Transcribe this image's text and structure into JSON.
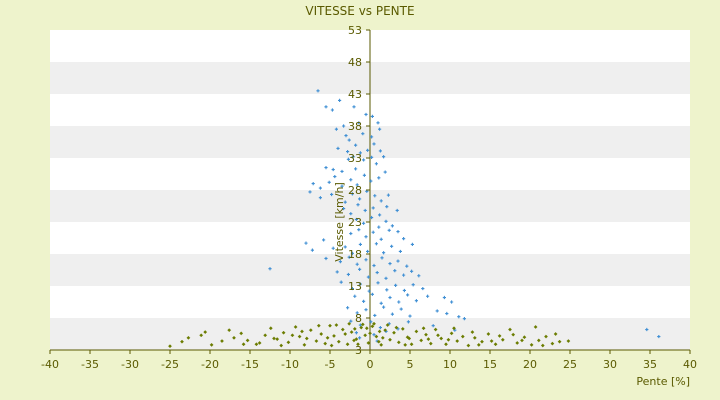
{
  "chart_data": {
    "type": "scatter",
    "title": "VITESSE vs PENTE",
    "xlabel": "Pente [%]",
    "ylabel": "Vitesse [km/h]",
    "xlim": [
      -40,
      40
    ],
    "ylim": [
      3,
      53
    ],
    "x_ticks": [
      -40,
      -35,
      -30,
      -25,
      -20,
      -15,
      -10,
      -5,
      0,
      5,
      10,
      15,
      20,
      25,
      30,
      35,
      40
    ],
    "y_ticks": [
      3,
      8,
      13,
      18,
      23,
      28,
      33,
      38,
      43,
      48,
      53
    ],
    "grid": "horizontal alternating bands",
    "background_color": "#eef3cc",
    "plot_band_colors": [
      "#ffffff",
      "#efefef"
    ],
    "axis_color": "#5a5a00",
    "series": [
      {
        "color": "#3f8fd4",
        "marker": "cross",
        "points": [
          [
            -6.5,
            43.5
          ],
          [
            -3.8,
            42
          ],
          [
            -5.5,
            41
          ],
          [
            -4.7,
            40.5
          ],
          [
            -2,
            41
          ],
          [
            -3.3,
            38
          ],
          [
            -1.4,
            38.5
          ],
          [
            -0.5,
            39.8
          ],
          [
            0.3,
            39.5
          ],
          [
            1,
            38.5
          ],
          [
            -4.2,
            37.5
          ],
          [
            -3,
            36.5
          ],
          [
            -2.6,
            35.8
          ],
          [
            -1.8,
            35
          ],
          [
            -0.9,
            36.8
          ],
          [
            0.2,
            36.3
          ],
          [
            1.2,
            37.5
          ],
          [
            -4,
            34.5
          ],
          [
            -2.8,
            34
          ],
          [
            -2.1,
            33.2
          ],
          [
            -1.2,
            33.8
          ],
          [
            -0.3,
            34.2
          ],
          [
            0.5,
            35.2
          ],
          [
            1.3,
            34.1
          ],
          [
            -5.5,
            31.5
          ],
          [
            -4.6,
            31.2
          ],
          [
            -3.5,
            30.9
          ],
          [
            -2.7,
            32.8
          ],
          [
            -1.8,
            31.3
          ],
          [
            -0.8,
            32.7
          ],
          [
            0.2,
            33.1
          ],
          [
            0.8,
            32.1
          ],
          [
            1.7,
            33.2
          ],
          [
            -7.1,
            29
          ],
          [
            -6.2,
            28.3
          ],
          [
            -5.1,
            29.2
          ],
          [
            -4.4,
            30.1
          ],
          [
            -3.5,
            28.6
          ],
          [
            -2.4,
            29.6
          ],
          [
            -1.6,
            28.8
          ],
          [
            -0.7,
            30.3
          ],
          [
            0.1,
            29.4
          ],
          [
            1.1,
            29.9
          ],
          [
            1.9,
            30.8
          ],
          [
            -7.5,
            27.7
          ],
          [
            -6.2,
            26.8
          ],
          [
            -4.8,
            27.3
          ],
          [
            -3.1,
            26.1
          ],
          [
            -2.2,
            27.4
          ],
          [
            -1.3,
            26.6
          ],
          [
            -0.4,
            27.8
          ],
          [
            0.6,
            27.1
          ],
          [
            1.4,
            26.3
          ],
          [
            2.3,
            27.2
          ],
          [
            -3.3,
            25.1
          ],
          [
            -2.4,
            24.3
          ],
          [
            -1.5,
            25.7
          ],
          [
            -0.6,
            24.8
          ],
          [
            0.4,
            25.2
          ],
          [
            1.2,
            24.1
          ],
          [
            2.1,
            25.4
          ],
          [
            3.4,
            24.8
          ],
          [
            -1.7,
            23.4
          ],
          [
            -0.8,
            22.8
          ],
          [
            0.2,
            23.7
          ],
          [
            1.1,
            22.2
          ],
          [
            2,
            23.1
          ],
          [
            2.8,
            22.4
          ],
          [
            3.5,
            21.5
          ],
          [
            -2.4,
            21.2
          ],
          [
            -1.4,
            21.8
          ],
          [
            -0.5,
            20.7
          ],
          [
            0.4,
            21.4
          ],
          [
            1.4,
            20.3
          ],
          [
            2.4,
            21.7
          ],
          [
            4.2,
            20.4
          ],
          [
            5.3,
            19.5
          ],
          [
            -8,
            19.7
          ],
          [
            -7.2,
            18.6
          ],
          [
            -5.8,
            20.2
          ],
          [
            -4.6,
            18.9
          ],
          [
            -3.1,
            19.1
          ],
          [
            -2.2,
            18.1
          ],
          [
            -1.2,
            19.5
          ],
          [
            -0.3,
            18.4
          ],
          [
            0.8,
            19.6
          ],
          [
            1.7,
            18.2
          ],
          [
            2.7,
            19.2
          ],
          [
            3.8,
            18.4
          ],
          [
            -5.5,
            17.3
          ],
          [
            -3.7,
            16.8
          ],
          [
            -2.6,
            17.5
          ],
          [
            -1.6,
            16.4
          ],
          [
            -0.5,
            17.1
          ],
          [
            0.5,
            16.2
          ],
          [
            1.5,
            17.4
          ],
          [
            2.5,
            16.5
          ],
          [
            3.5,
            16.9
          ],
          [
            4.6,
            16.1
          ],
          [
            -12.5,
            15.7
          ],
          [
            -4.1,
            15.2
          ],
          [
            -2.7,
            14.8
          ],
          [
            -1.3,
            15.6
          ],
          [
            -0.2,
            14.4
          ],
          [
            0.9,
            15.1
          ],
          [
            2,
            14.2
          ],
          [
            3.1,
            15.4
          ],
          [
            4.2,
            14.7
          ],
          [
            5.2,
            15.3
          ],
          [
            6.1,
            14.6
          ],
          [
            -3.6,
            13.6
          ],
          [
            -2.2,
            12.6
          ],
          [
            -1.2,
            13.3
          ],
          [
            -0.1,
            12.2
          ],
          [
            1,
            13.5
          ],
          [
            2.1,
            12.4
          ],
          [
            3.2,
            13.1
          ],
          [
            4.3,
            12.3
          ],
          [
            5.4,
            13.2
          ],
          [
            6.6,
            12.6
          ],
          [
            -1.9,
            11.4
          ],
          [
            -0.8,
            10.6
          ],
          [
            0.3,
            11.7
          ],
          [
            1.4,
            10.3
          ],
          [
            2.5,
            11.2
          ],
          [
            3.6,
            10.5
          ],
          [
            4.7,
            11.6
          ],
          [
            5.8,
            10.7
          ],
          [
            7.2,
            11.4
          ],
          [
            9.3,
            11.2
          ],
          [
            10.2,
            10.5
          ],
          [
            -2.8,
            9.6
          ],
          [
            -1.6,
            8.8
          ],
          [
            -0.5,
            9.3
          ],
          [
            0.6,
            8.4
          ],
          [
            1.7,
            9.7
          ],
          [
            2.8,
            8.6
          ],
          [
            3.9,
            9.4
          ],
          [
            5,
            8.3
          ],
          [
            8.4,
            9.1
          ],
          [
            9.6,
            8.7
          ],
          [
            11.1,
            8.2
          ],
          [
            11.8,
            7.9
          ],
          [
            -2.4,
            7.5
          ],
          [
            -1.2,
            6.9
          ],
          [
            0.1,
            7.4
          ],
          [
            1.3,
            6.5
          ],
          [
            2.4,
            7.1
          ],
          [
            3.5,
            6.3
          ],
          [
            4.8,
            7.4
          ],
          [
            7.9,
            6.8
          ],
          [
            10.6,
            6.1
          ],
          [
            34.6,
            6.2
          ],
          [
            36.1,
            5.1
          ],
          [
            -1.7,
            5.7
          ],
          [
            0.5,
            5.4
          ],
          [
            2,
            5.9
          ],
          [
            -1.3,
            4.9
          ],
          [
            0.9,
            4.4
          ]
        ]
      },
      {
        "color": "#6b7c00",
        "marker": "diamond",
        "points": [
          [
            -25,
            3.6
          ],
          [
            -22.7,
            4.9
          ],
          [
            -21.1,
            5.3
          ],
          [
            -18.5,
            4.4
          ],
          [
            -17.6,
            6.1
          ],
          [
            -16.1,
            5.6
          ],
          [
            -15.3,
            4.5
          ],
          [
            -14.2,
            3.9
          ],
          [
            -13.1,
            5.3
          ],
          [
            -12.4,
            6.4
          ],
          [
            -11.6,
            4.7
          ],
          [
            -10.8,
            5.7
          ],
          [
            -10.2,
            4.2
          ],
          [
            -9.3,
            6.6
          ],
          [
            -8.8,
            5.1
          ],
          [
            -8.2,
            3.8
          ],
          [
            -7.4,
            6.1
          ],
          [
            -6.7,
            4.4
          ],
          [
            -6.1,
            5.5
          ],
          [
            -5.6,
            4
          ],
          [
            -5,
            6.8
          ],
          [
            -4.5,
            5.2
          ],
          [
            -3.9,
            4.3
          ],
          [
            -3.4,
            6.2
          ],
          [
            -2.8,
            3.9
          ],
          [
            -2.3,
            5.8
          ],
          [
            -1.7,
            4.7
          ],
          [
            -1.1,
            6.5
          ],
          [
            -0.6,
            5.3
          ],
          [
            -0.2,
            4.1
          ],
          [
            0.3,
            6.7
          ],
          [
            0.8,
            5.1
          ],
          [
            1.4,
            3.8
          ],
          [
            1.9,
            6.1
          ],
          [
            2.5,
            4.6
          ],
          [
            3,
            5.7
          ],
          [
            3.6,
            4.2
          ],
          [
            4.1,
            6.3
          ],
          [
            4.7,
            5
          ],
          [
            5.2,
            3.9
          ],
          [
            5.8,
            5.9
          ],
          [
            6.4,
            4.5
          ],
          [
            7,
            5.4
          ],
          [
            7.6,
            4
          ],
          [
            8.2,
            6.2
          ],
          [
            8.9,
            4.8
          ],
          [
            9.5,
            3.9
          ],
          [
            10.2,
            5.6
          ],
          [
            10.9,
            4.4
          ],
          [
            11.6,
            5.1
          ],
          [
            12.3,
            3.7
          ],
          [
            13.1,
            4.9
          ],
          [
            14,
            4.3
          ],
          [
            14.8,
            5.5
          ],
          [
            15.7,
            3.9
          ],
          [
            16.6,
            4.6
          ],
          [
            17.5,
            6.2
          ],
          [
            18.4,
            4.1
          ],
          [
            19.3,
            5
          ],
          [
            20.2,
            3.8
          ],
          [
            21.1,
            4.5
          ],
          [
            22,
            5.1
          ],
          [
            22.8,
            4
          ],
          [
            23.7,
            4.3
          ],
          [
            24.8,
            4.4
          ],
          [
            -23.5,
            4.3
          ],
          [
            -19.8,
            3.8
          ],
          [
            -17,
            4.9
          ],
          [
            -13.8,
            4.1
          ],
          [
            -11.1,
            3.7
          ],
          [
            -9.7,
            5.3
          ],
          [
            -7.9,
            4.8
          ],
          [
            -6.4,
            6.8
          ],
          [
            -4.8,
            3.7
          ],
          [
            -3.1,
            5.5
          ],
          [
            -1.5,
            3.9
          ],
          [
            0,
            5.6
          ],
          [
            1.6,
            4.9
          ],
          [
            3.3,
            6.5
          ],
          [
            4.9,
            4.8
          ],
          [
            6.7,
            6.4
          ],
          [
            8.5,
            5.3
          ],
          [
            10.5,
            6.4
          ],
          [
            12.8,
            5.8
          ],
          [
            15.2,
            4.4
          ],
          [
            17.9,
            5.4
          ],
          [
            20.7,
            6.6
          ],
          [
            23.2,
            5.5
          ],
          [
            -20.6,
            5.8
          ],
          [
            -15.8,
            3.9
          ],
          [
            -12,
            4.8
          ],
          [
            -8.5,
            5.9
          ],
          [
            -5.3,
            4.9
          ],
          [
            -2,
            4.5
          ],
          [
            1.1,
            4.3
          ],
          [
            4.4,
            3.8
          ],
          [
            7.3,
            4.7
          ],
          [
            9.8,
            4.6
          ],
          [
            13.6,
            3.8
          ],
          [
            16.2,
            5.2
          ],
          [
            19,
            4.5
          ],
          [
            21.6,
            3.7
          ],
          [
            -4.2,
            6.9
          ],
          [
            -0.9,
            7
          ],
          [
            0.5,
            7.1
          ],
          [
            2.2,
            6.9
          ],
          [
            -1.9,
            6.3
          ],
          [
            -0.4,
            6.4
          ],
          [
            1.2,
            5.9
          ],
          [
            -2.6,
            7.1
          ]
        ]
      }
    ]
  }
}
